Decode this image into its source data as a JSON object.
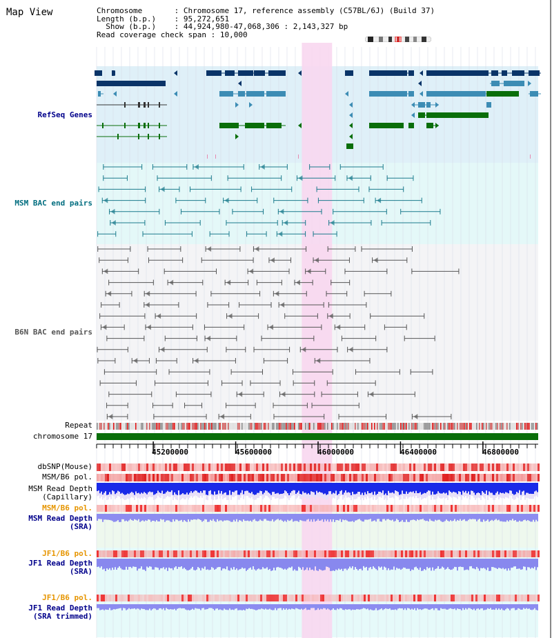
{
  "page": {
    "title": "Map View"
  },
  "info": {
    "chromosome_key": "Chromosome",
    "chromosome_val": "Chromosome 17, reference assembly (C57BL/6J) (Build 37)",
    "length_key": "Length (b.p.)",
    "length_val": "95,272,651",
    "show_key": "Show (b.p.)",
    "show_val": "44,924,980-47,068,306 : 2,143,327 bp",
    "coverage_key": "Read coverage check span",
    "coverage_val": "10,000"
  },
  "tracks": {
    "refseq": "RefSeq Genes",
    "msm_bac": "MSM BAC end pairs",
    "b6n_bac": "B6N BAC end pairs",
    "repeat": "Repeat",
    "chromosome": "chromosome 17",
    "dbsnp": "dbSNP(Mouse)",
    "msm_b6_pol_1": "MSM/B6 pol.",
    "msm_depth_cap_1": "MSM Read Depth",
    "msm_depth_cap_2": "(Capillary)",
    "msm_b6_pol_2": "MSM/B6 pol.",
    "msm_depth_sra_1": "MSM Read Depth",
    "msm_depth_sra_2": "(SRA)",
    "jf1_b6_pol_1": "JF1/B6 pol.",
    "jf1_depth_sra_1": "JF1 Read Depth",
    "jf1_depth_sra_2": "(SRA)",
    "jf1_b6_pol_2": "JF1/B6 pol.",
    "jf1_depth_trim_1": "JF1 Read Depth",
    "jf1_depth_trim_2": "(SRA trimmed)"
  },
  "axis": {
    "ticks": [
      "45200000",
      "45600000",
      "46000000",
      "46400000",
      "46800000"
    ],
    "tick_values": [
      45200000,
      45600000,
      46000000,
      46400000,
      46800000
    ],
    "start": 44924980,
    "end": 47068306
  },
  "highlight": {
    "start": 45921000,
    "end": 46068000,
    "color": "#f8d7f0"
  },
  "colors": {
    "refseq_bg": "#dff0f8",
    "msm_bg": "#e4f8f8",
    "b6n_bg": "#f4f4f6",
    "refseq_dark": "#0a3468",
    "refseq_mid": "#3c8cb4",
    "refseq_green": "#0a6e0a",
    "msm_line": "#1a7a8c",
    "b6n_line": "#555555",
    "chromosome": "#0a6e0a"
  }
}
